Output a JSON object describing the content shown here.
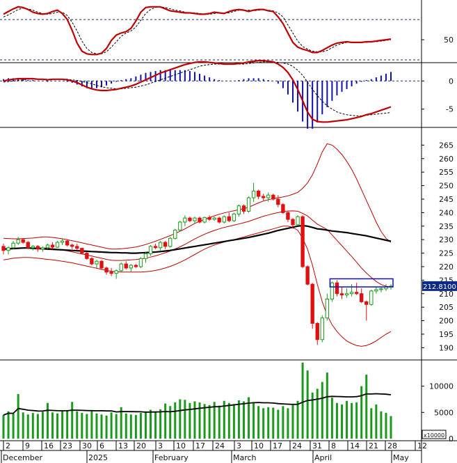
{
  "colors": {
    "up": "#1a9a1a",
    "down": "#e01010",
    "bollinger": "#c00000",
    "ma": "#000000",
    "macd_hist": "#1010b0",
    "volume": "#1a9a1a",
    "box": "#1010c0",
    "price_tag": "#0b2a86"
  },
  "chart_data": {
    "type": "candlestick",
    "price_tag": "212.8100",
    "volume_multiplier": "x10000",
    "x_ticks": [
      "2",
      "9",
      "16",
      "23",
      "30",
      "6",
      "13",
      "20",
      "3",
      "10",
      "17",
      "24",
      "3",
      "10",
      "17",
      "24",
      "31",
      "8",
      "14",
      "21",
      "28",
      "12"
    ],
    "months": [
      "December",
      "2025",
      "February",
      "March",
      "April",
      "May"
    ],
    "panels": {
      "oscillator": {
        "ylim": [
          20,
          105
        ],
        "ticks": [
          "50"
        ],
        "levels": [
          80,
          20
        ]
      },
      "macd": {
        "ylim": [
          -8,
          3
        ],
        "ticks": [
          "0",
          "-5"
        ]
      },
      "price": {
        "ylim": [
          187,
          270
        ],
        "ticks": [
          "265",
          "260",
          "255",
          "250",
          "245",
          "240",
          "235",
          "230",
          "225",
          "220",
          "215",
          "210",
          "205",
          "200",
          "195",
          "190"
        ]
      },
      "volume": {
        "ylim": [
          0,
          15000
        ],
        "ticks": [
          "10000",
          "5000",
          "0"
        ]
      }
    },
    "ohlc": [
      [
        227.5,
        228.5,
        224.5,
        226.0
      ],
      [
        226.0,
        227.5,
        224.5,
        227.0
      ],
      [
        227.0,
        229.5,
        226.5,
        228.7
      ],
      [
        228.7,
        231.0,
        228.0,
        230.0
      ],
      [
        230.0,
        230.5,
        228.5,
        229.0
      ],
      [
        229.0,
        229.5,
        226.5,
        227.0
      ],
      [
        227.0,
        228.0,
        226.0,
        227.5
      ],
      [
        227.5,
        228.0,
        225.5,
        226.5
      ],
      [
        226.5,
        227.5,
        225.5,
        227.0
      ],
      [
        227.0,
        228.5,
        226.5,
        228.0
      ],
      [
        228.0,
        229.0,
        226.5,
        227.2
      ],
      [
        227.2,
        229.5,
        227.0,
        229.0
      ],
      [
        229.0,
        230.5,
        228.0,
        229.5
      ],
      [
        229.5,
        230.0,
        227.5,
        228.0
      ],
      [
        228.0,
        228.5,
        226.5,
        227.5
      ],
      [
        227.5,
        228.5,
        226.0,
        226.8
      ],
      [
        226.8,
        227.0,
        224.5,
        225.0
      ],
      [
        225.0,
        225.5,
        222.5,
        223.0
      ],
      [
        223.0,
        223.5,
        220.5,
        221.0
      ],
      [
        221.0,
        222.5,
        219.5,
        222.0
      ],
      [
        222.0,
        222.5,
        219.0,
        219.5
      ],
      [
        219.5,
        220.0,
        217.0,
        218.0
      ],
      [
        218.0,
        219.5,
        216.5,
        217.5
      ],
      [
        217.5,
        219.0,
        215.5,
        218.5
      ],
      [
        218.5,
        221.5,
        218.0,
        221.0
      ],
      [
        221.0,
        222.0,
        219.0,
        219.5
      ],
      [
        219.5,
        221.0,
        218.0,
        220.5
      ],
      [
        220.5,
        221.0,
        219.5,
        220.0
      ],
      [
        220.0,
        223.5,
        219.5,
        223.0
      ],
      [
        223.0,
        225.5,
        221.5,
        224.8
      ],
      [
        224.8,
        228.0,
        224.0,
        227.5
      ],
      [
        227.5,
        228.5,
        226.5,
        227.0
      ],
      [
        227.0,
        229.5,
        226.0,
        229.0
      ],
      [
        229.0,
        229.5,
        226.5,
        227.5
      ],
      [
        227.5,
        231.0,
        227.0,
        230.5
      ],
      [
        230.5,
        234.0,
        230.0,
        233.5
      ],
      [
        233.5,
        237.0,
        233.0,
        236.5
      ],
      [
        236.5,
        239.0,
        235.0,
        238.0
      ],
      [
        238.0,
        238.5,
        236.5,
        237.0
      ],
      [
        237.0,
        238.5,
        236.0,
        238.0
      ],
      [
        238.0,
        238.5,
        236.0,
        236.5
      ],
      [
        236.5,
        238.5,
        236.0,
        238.2
      ],
      [
        238.2,
        239.0,
        237.0,
        237.5
      ],
      [
        237.5,
        238.5,
        237.0,
        238.0
      ],
      [
        238.0,
        238.5,
        236.0,
        236.5
      ],
      [
        236.5,
        239.0,
        236.0,
        238.5
      ],
      [
        238.5,
        240.0,
        236.5,
        237.0
      ],
      [
        237.0,
        240.0,
        236.5,
        239.5
      ],
      [
        239.5,
        243.0,
        238.5,
        242.5
      ],
      [
        242.5,
        243.0,
        239.5,
        240.5
      ],
      [
        240.5,
        246.0,
        240.0,
        245.5
      ],
      [
        245.5,
        251.0,
        244.0,
        248.0
      ],
      [
        248.0,
        248.5,
        245.0,
        246.0
      ],
      [
        246.0,
        247.0,
        244.5,
        245.5
      ],
      [
        245.5,
        247.5,
        244.0,
        246.5
      ],
      [
        246.5,
        247.0,
        244.5,
        245.0
      ],
      [
        245.0,
        246.5,
        242.0,
        243.0
      ],
      [
        243.0,
        243.5,
        239.5,
        240.0
      ],
      [
        240.0,
        240.5,
        236.5,
        237.5
      ],
      [
        237.5,
        238.0,
        234.0,
        235.5
      ],
      [
        235.5,
        239.0,
        235.0,
        238.5
      ],
      [
        238.5,
        239.0,
        219.5,
        220.0
      ],
      [
        220.0,
        220.5,
        213.0,
        213.5
      ],
      [
        213.5,
        214.0,
        197.0,
        199.0
      ],
      [
        199.0,
        199.5,
        191.0,
        193.0
      ],
      [
        193.0,
        202.0,
        192.0,
        201.0
      ],
      [
        201.0,
        210.0,
        200.0,
        208.0
      ],
      [
        208.0,
        214.5,
        207.0,
        214.0
      ],
      [
        214.0,
        215.0,
        209.0,
        210.0
      ],
      [
        210.0,
        212.5,
        208.0,
        209.5
      ],
      [
        209.5,
        212.0,
        208.5,
        210.0
      ],
      [
        210.0,
        213.5,
        209.0,
        210.5
      ],
      [
        210.5,
        214.0,
        209.5,
        210.0
      ],
      [
        210.0,
        212.0,
        206.5,
        207.0
      ],
      [
        207.0,
        207.5,
        200.0,
        206.0
      ],
      [
        206.0,
        211.5,
        205.5,
        211.0
      ],
      [
        211.0,
        212.5,
        210.0,
        211.5
      ],
      [
        211.5,
        212.5,
        210.5,
        211.8
      ],
      [
        211.8,
        213.5,
        211.0,
        212.5
      ],
      [
        212.5,
        213.5,
        211.5,
        212.8
      ]
    ],
    "volume": [
      4500,
      5200,
      4800,
      8500,
      5000,
      4600,
      4900,
      4700,
      5100,
      6800,
      5000,
      4800,
      5200,
      5400,
      7000,
      5200,
      4900,
      4700,
      5200,
      4800,
      4600,
      4400,
      5000,
      4700,
      6000,
      4800,
      4600,
      4500,
      4900,
      5200,
      5500,
      5100,
      5600,
      6700,
      6200,
      6900,
      7500,
      7400,
      6800,
      7100,
      6900,
      6600,
      6400,
      7000,
      6300,
      7200,
      6800,
      6600,
      7300,
      7100,
      7900,
      6800,
      6200,
      5800,
      6000,
      5900,
      5500,
      6200,
      5800,
      6400,
      7200,
      14500,
      13000,
      8800,
      9500,
      10800,
      12600,
      7800,
      6800,
      6500,
      7200,
      6800,
      6900,
      10000,
      12200,
      5800,
      6500,
      5200,
      4900,
      4300
    ],
    "ma20": [
      226.5,
      226.6,
      226.7,
      226.8,
      226.9,
      226.9,
      226.8,
      226.7,
      226.6,
      226.5,
      226.4,
      226.3,
      226.2,
      226.1,
      226.0,
      225.9,
      225.8,
      225.7,
      225.6,
      225.5,
      225.4,
      225.3,
      225.2,
      225.2,
      225.1,
      225.1,
      225.0,
      225.0,
      225.1,
      225.2,
      225.3,
      225.4,
      225.6,
      225.8,
      226.0,
      226.3,
      226.6,
      226.9,
      227.2,
      227.5,
      227.8,
      228.1,
      228.4,
      228.7,
      229.0,
      229.3,
      229.6,
      229.9,
      230.2,
      230.5,
      230.8,
      231.2,
      231.6,
      232.0,
      232.4,
      232.9,
      233.4,
      233.8,
      234.2,
      234.6,
      235.0,
      235.2,
      235.0,
      234.5,
      234.0,
      233.8,
      233.5,
      233.2,
      233.0,
      232.8,
      232.6,
      232.3,
      232.0,
      231.7,
      231.4,
      231.0,
      230.6,
      230.2,
      229.8,
      229.4
    ],
    "bb_upper": [
      230.5,
      230.4,
      230.3,
      230.3,
      230.4,
      230.5,
      230.6,
      230.8,
      231.0,
      231.0,
      230.8,
      230.6,
      230.3,
      230.0,
      229.6,
      229.2,
      228.8,
      228.4,
      228.0,
      227.6,
      227.2,
      226.8,
      226.5,
      226.5,
      226.6,
      226.8,
      227.0,
      227.3,
      227.7,
      228.2,
      228.8,
      229.4,
      230.1,
      230.8,
      231.5,
      232.3,
      233.1,
      234.0,
      235.0,
      236.0,
      236.8,
      237.5,
      238.2,
      238.8,
      239.4,
      239.9,
      240.3,
      240.7,
      241.1,
      241.5,
      242.0,
      242.8,
      243.6,
      244.3,
      244.8,
      245.2,
      245.5,
      245.8,
      246.2,
      246.8,
      247.5,
      249.0,
      251.0,
      254.0,
      258.0,
      262.5,
      265.5,
      265.0,
      263.5,
      261.5,
      259.0,
      256.0,
      252.5,
      248.5,
      244.5,
      240.5,
      236.5,
      233.0,
      230.5,
      229.0
    ],
    "bb_lower": [
      222.5,
      222.8,
      223.1,
      223.3,
      223.4,
      223.4,
      223.3,
      223.1,
      222.9,
      222.7,
      222.5,
      222.3,
      222.0,
      221.7,
      221.4,
      221.0,
      220.6,
      220.2,
      219.8,
      219.4,
      219.0,
      218.6,
      218.3,
      218.1,
      218.0,
      218.0,
      218.0,
      218.0,
      218.0,
      218.1,
      218.3,
      218.6,
      219.0,
      219.5,
      220.1,
      220.8,
      221.6,
      222.5,
      223.5,
      224.5,
      225.5,
      226.5,
      227.3,
      228.0,
      228.6,
      229.1,
      229.6,
      230.0,
      230.5,
      231.0,
      231.5,
      232.0,
      232.5,
      233.0,
      233.5,
      234.0,
      234.5,
      235.0,
      235.0,
      234.5,
      233.5,
      230.5,
      226.5,
      220.5,
      213.5,
      207.0,
      202.0,
      198.5,
      196.0,
      194.0,
      192.5,
      191.5,
      190.8,
      190.5,
      190.8,
      191.5,
      192.5,
      193.8,
      195.0,
      196.0
    ],
    "osc_fast": [
      88,
      92,
      96,
      99,
      98,
      95,
      91,
      89,
      88,
      89,
      92,
      94,
      89,
      80,
      64,
      45,
      33,
      29,
      28,
      28,
      30,
      37,
      49,
      57,
      60,
      62,
      67,
      78,
      91,
      98,
      99,
      99,
      99,
      96,
      93,
      92,
      91,
      90,
      90,
      89,
      88,
      88,
      89,
      91,
      90,
      89,
      92,
      94,
      95,
      94,
      92,
      94,
      95,
      95,
      93,
      92,
      84,
      74,
      60,
      46,
      39,
      36,
      34,
      31,
      31,
      34,
      38,
      42,
      45,
      46,
      47,
      46,
      46,
      46,
      47,
      47,
      48,
      49,
      50,
      51
    ],
    "osc_slow": [
      84,
      87,
      91,
      95,
      97,
      96,
      94,
      91,
      89,
      88,
      89,
      91,
      91,
      86,
      76,
      63,
      48,
      37,
      31,
      29,
      29,
      32,
      39,
      47,
      55,
      60,
      63,
      69,
      79,
      89,
      95,
      98,
      99,
      98,
      96,
      94,
      93,
      91,
      90,
      90,
      89,
      88,
      88,
      89,
      90,
      90,
      90,
      92,
      94,
      94,
      94,
      93,
      94,
      95,
      94,
      93,
      90,
      84,
      72,
      60,
      48,
      40,
      36,
      33,
      32,
      32,
      34,
      38,
      42,
      44,
      46,
      46,
      46,
      46,
      46,
      47,
      47,
      48,
      49,
      50
    ],
    "macd": [
      0.0,
      0.2,
      0.3,
      0.4,
      0.4,
      0.4,
      0.4,
      0.3,
      0.3,
      0.2,
      0.3,
      0.3,
      0.3,
      0.2,
      0.0,
      -0.3,
      -0.7,
      -1.1,
      -1.4,
      -1.6,
      -1.7,
      -1.7,
      -1.6,
      -1.5,
      -1.3,
      -1.1,
      -0.9,
      -0.6,
      -0.2,
      0.2,
      0.6,
      1.0,
      1.4,
      1.7,
      2.0,
      2.3,
      2.6,
      2.9,
      3.1,
      3.3,
      3.4,
      3.4,
      3.3,
      3.2,
      3.1,
      3.0,
      3.0,
      3.0,
      3.1,
      3.2,
      3.4,
      3.5,
      3.6,
      3.6,
      3.5,
      3.4,
      3.0,
      2.4,
      1.5,
      0.2,
      -1.5,
      -3.5,
      -5.5,
      -6.8,
      -7.2,
      -7.3,
      -7.3,
      -7.2,
      -7.1,
      -7.0,
      -6.9,
      -6.7,
      -6.5,
      -6.3,
      -6.0,
      -5.8,
      -5.5,
      -5.2,
      -4.9,
      -4.6
    ],
    "macd_signal": [
      -0.2,
      -0.1,
      0.0,
      0.1,
      0.2,
      0.3,
      0.3,
      0.3,
      0.3,
      0.3,
      0.3,
      0.3,
      0.3,
      0.3,
      0.2,
      0.1,
      -0.1,
      -0.3,
      -0.5,
      -0.8,
      -1.0,
      -1.2,
      -1.3,
      -1.4,
      -1.4,
      -1.3,
      -1.2,
      -1.1,
      -0.9,
      -0.7,
      -0.4,
      -0.1,
      0.2,
      0.5,
      0.8,
      1.1,
      1.4,
      1.7,
      2.0,
      2.3,
      2.6,
      2.8,
      2.9,
      3.0,
      3.0,
      3.0,
      3.0,
      3.0,
      3.0,
      3.0,
      3.1,
      3.2,
      3.3,
      3.4,
      3.4,
      3.4,
      3.3,
      3.2,
      3.0,
      2.6,
      1.9,
      1.0,
      -0.2,
      -1.5,
      -2.6,
      -3.6,
      -4.4,
      -5.0,
      -5.5,
      -5.8,
      -6.0,
      -6.1,
      -6.2,
      -6.2,
      -6.1,
      -6.0,
      -5.9,
      -5.8,
      -5.7,
      -5.6
    ],
    "box_highlight": {
      "start_index": 67,
      "end_index": 79,
      "low": 212.5,
      "high": 215.5
    }
  }
}
